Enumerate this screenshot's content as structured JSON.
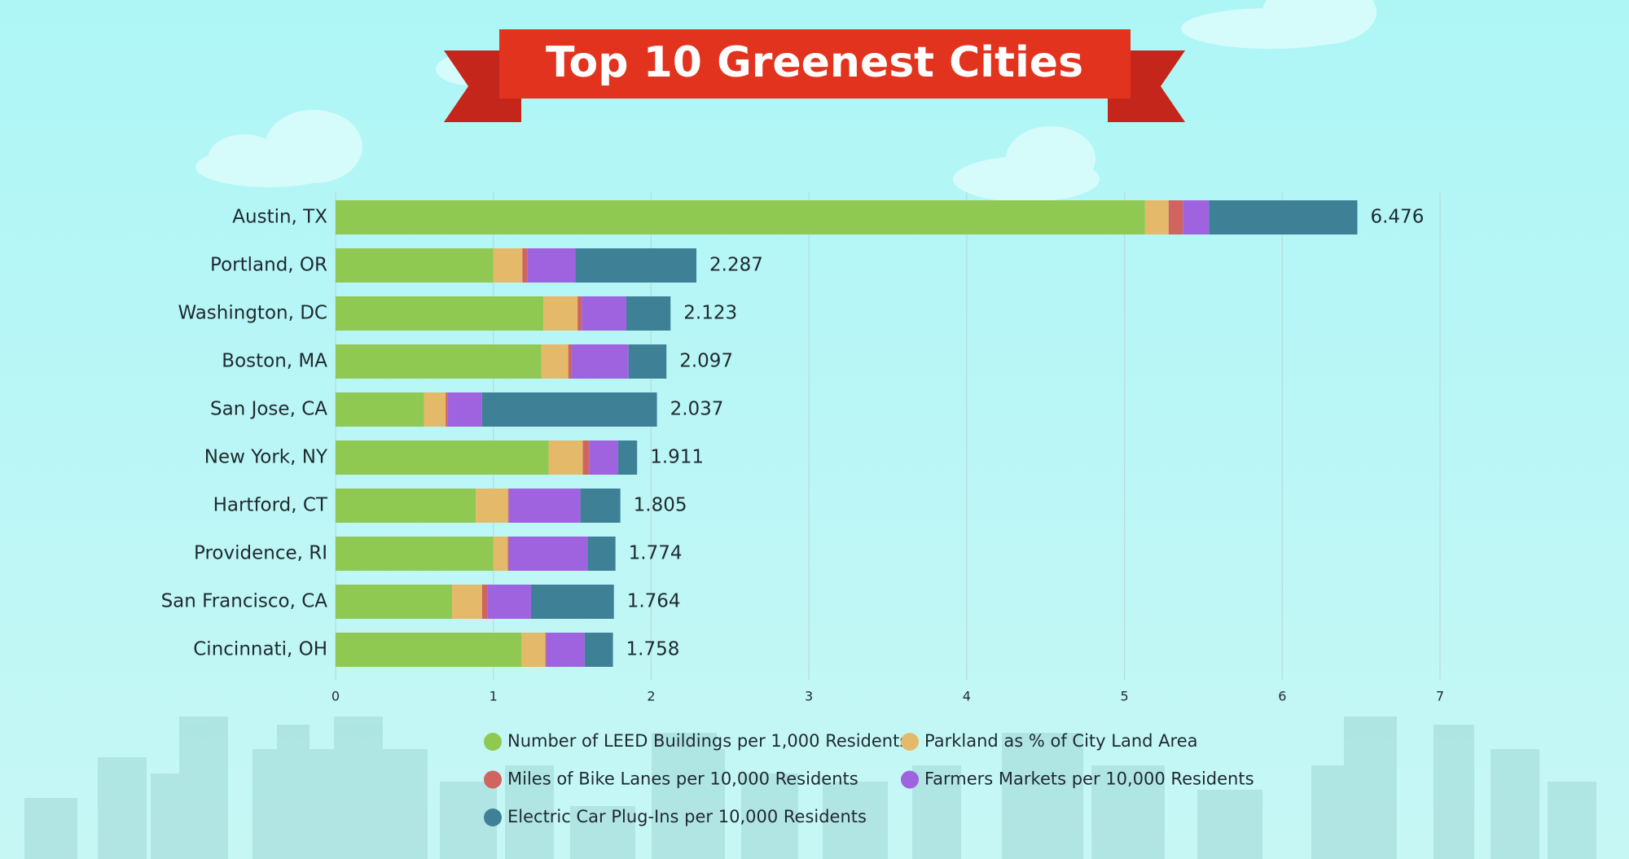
{
  "chart_data": {
    "type": "stacked-bar-horizontal",
    "title": "Top 10 Greenest Cities",
    "categories": [
      "Austin, TX",
      "Portland, OR",
      "Washington, DC",
      "Boston, MA",
      "San Jose, CA",
      "New York, NY",
      "Hartford, CT",
      "Providence, RI",
      "San Francisco, CA",
      "Cincinnati, OH"
    ],
    "series": [
      {
        "name": "Number of LEED Buildings per 1,000 Residents",
        "color": "#8fc952",
        "values": [
          5.13,
          1.0,
          1.317,
          1.304,
          0.56,
          1.35,
          0.889,
          1.0,
          0.738,
          1.179
        ]
      },
      {
        "name": "Parkland as % of City Land Area",
        "color": "#e5b96a",
        "values": [
          0.15,
          0.184,
          0.217,
          0.171,
          0.138,
          0.217,
          0.204,
          0.092,
          0.191,
          0.151
        ]
      },
      {
        "name": "Miles of Bike Lanes per 10,000 Residents",
        "color": "#cf6461",
        "values": [
          0.09,
          0.033,
          0.026,
          0.02,
          0.013,
          0.04,
          0.005,
          0.005,
          0.033,
          0.005
        ]
      },
      {
        "name": "Farmers Markets per 10,000 Residents",
        "color": "#9f63e0",
        "values": [
          0.165,
          0.303,
          0.283,
          0.362,
          0.217,
          0.184,
          0.454,
          0.5,
          0.277,
          0.244
        ]
      },
      {
        "name": "Electric Car Plug-Ins per 10,000 Residents",
        "color": "#3e8197",
        "values": [
          0.941,
          0.767,
          0.28,
          0.24,
          1.109,
          0.12,
          0.253,
          0.177,
          0.525,
          0.179
        ]
      }
    ],
    "totals": [
      6.476,
      2.287,
      2.123,
      2.097,
      2.037,
      1.911,
      1.805,
      1.774,
      1.764,
      1.758
    ],
    "xlim": [
      0,
      7
    ],
    "xticks": [
      0,
      1,
      2,
      3,
      4,
      5,
      6,
      7
    ],
    "grid": true,
    "legend": "bottom"
  }
}
